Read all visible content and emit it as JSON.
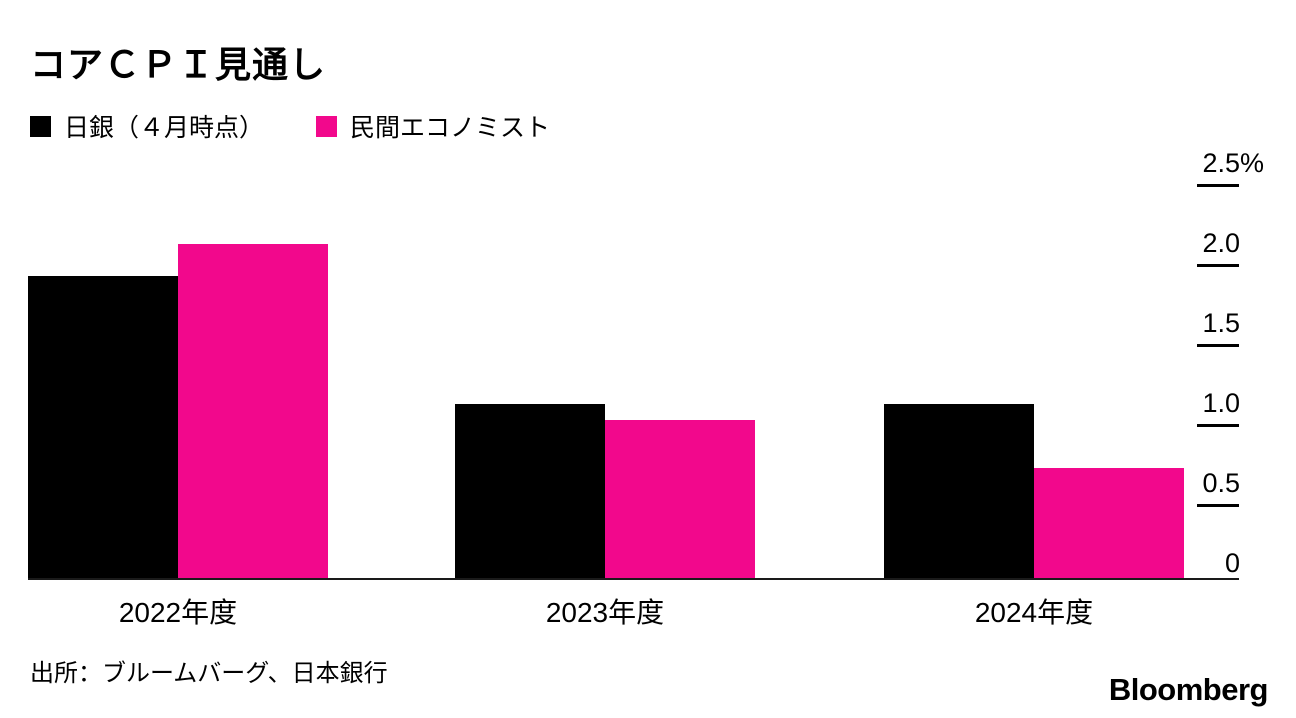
{
  "title": "コアＣＰＩ見通し",
  "legend": [
    {
      "label": "日銀（４月時点）",
      "color": "#000000"
    },
    {
      "label": "民間エコノミスト",
      "color": "#f2088c"
    }
  ],
  "source": "出所：ブルームバーグ、日本銀行",
  "logo": "Bloomberg",
  "colors": {
    "boj": "#000000",
    "economists": "#f2088c",
    "axis": "#1a1a1a"
  },
  "chart_data": {
    "type": "bar",
    "title": "コアＣＰＩ見通し",
    "categories": [
      "2022年度",
      "2023年度",
      "2024年度"
    ],
    "series": [
      {
        "name": "日銀（４月時点）",
        "key": "boj",
        "color": "#000000",
        "values": [
          1.9,
          1.1,
          1.1
        ]
      },
      {
        "name": "民間エコノミスト",
        "key": "economists",
        "color": "#f2088c",
        "values": [
          2.1,
          1.0,
          0.7
        ]
      }
    ],
    "unit": "%",
    "ylim": [
      0,
      2.5
    ],
    "yticks": [
      2.5,
      2.0,
      1.5,
      1.0,
      0.5,
      0
    ],
    "ytick_labels": [
      "2.5",
      "2.0",
      "1.5",
      "1.0",
      "0.5",
      "0"
    ],
    "axis_side": "right",
    "grid": false,
    "legend_position": "top-left"
  }
}
